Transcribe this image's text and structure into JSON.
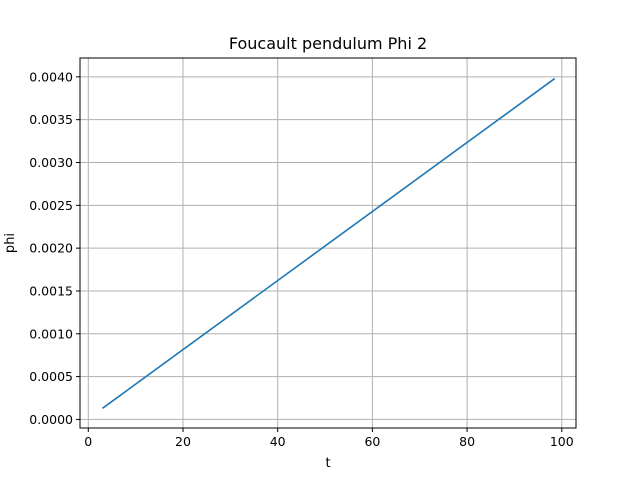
{
  "chart_data": {
    "type": "line",
    "title": "Foucault pendulum Phi 2",
    "xlabel": "t",
    "ylabel": "phi",
    "xlim": [
      -1.75,
      103.0
    ],
    "ylim": [
      -0.0001,
      0.00422
    ],
    "xticks": [
      0,
      20,
      40,
      60,
      80,
      100
    ],
    "yticks": [
      0.0,
      0.0005,
      0.001,
      0.0015,
      0.002,
      0.0025,
      0.003,
      0.0035,
      0.004
    ],
    "xtick_labels": [
      "0",
      "20",
      "40",
      "60",
      "80",
      "100"
    ],
    "ytick_labels": [
      "0.0000",
      "0.0005",
      "0.0010",
      "0.0015",
      "0.0020",
      "0.0025",
      "0.0030",
      "0.0035",
      "0.0040"
    ],
    "grid": true,
    "series": [
      {
        "color": "#1f77b4",
        "x": [
          3,
          98.5
        ],
        "y": [
          0.00013,
          0.00398
        ]
      }
    ]
  }
}
